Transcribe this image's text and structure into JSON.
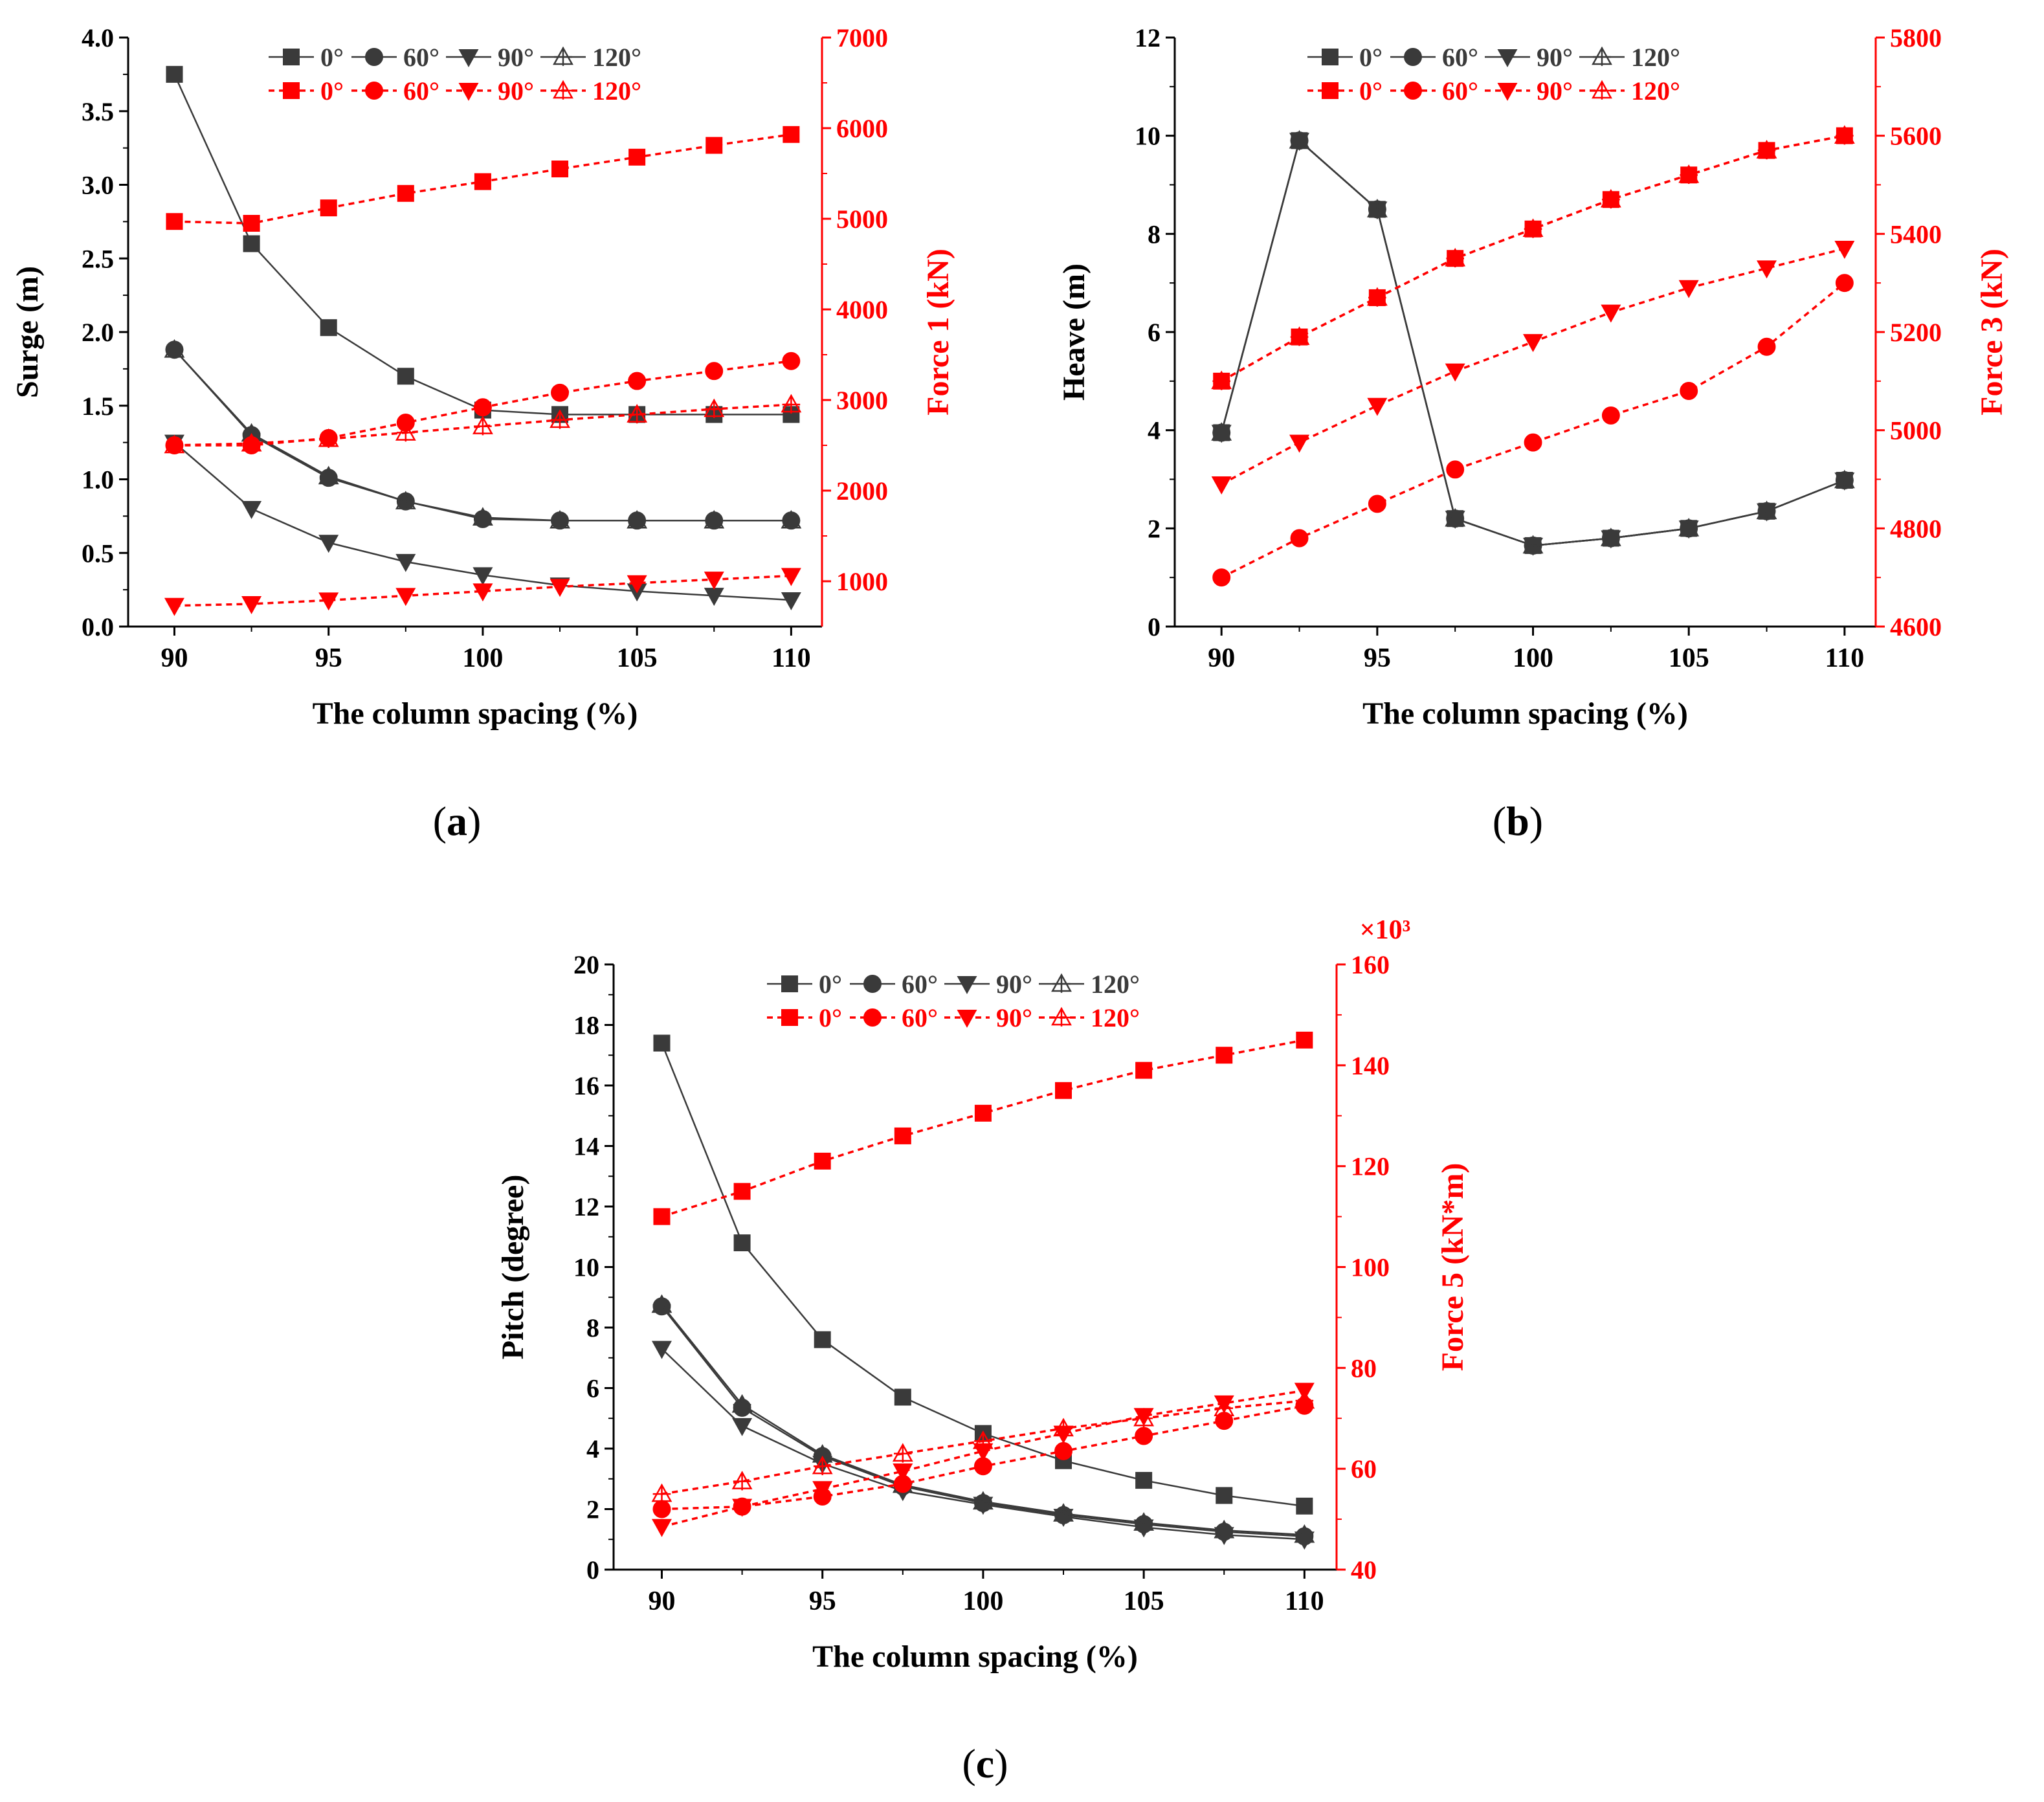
{
  "figure": {
    "x_values": [
      90,
      92.5,
      95,
      97.5,
      100,
      102.5,
      105,
      107.5,
      110
    ],
    "legend_labels": [
      "0°",
      "60°",
      "90°",
      "120°"
    ]
  },
  "chart_data": [
    {
      "type": "line",
      "panel_label": "(a)",
      "xlabel": "The column spacing (%)",
      "ylabel": "Surge (m)",
      "y2label": "Force 1 (kN)",
      "y2_multiplier": "",
      "xlim": [
        88.5,
        111
      ],
      "xticks": [
        90,
        95,
        100,
        105,
        110
      ],
      "ylim": [
        0,
        4
      ],
      "yticks": [
        0.0,
        0.5,
        1.0,
        1.5,
        2.0,
        2.5,
        3.0,
        3.5,
        4.0
      ],
      "ytick_decimals": 1,
      "y2lim": [
        500,
        7000
      ],
      "y2ticks": [
        1000,
        2000,
        3000,
        4000,
        5000,
        6000,
        7000
      ],
      "series": [
        {
          "name": "0°",
          "axis": "left",
          "marker": "square",
          "values": [
            3.75,
            2.6,
            2.03,
            1.7,
            1.47,
            1.44,
            1.44,
            1.44,
            1.44
          ]
        },
        {
          "name": "60°",
          "axis": "left",
          "marker": "circle",
          "values": [
            1.88,
            1.3,
            1.01,
            0.85,
            0.73,
            0.72,
            0.72,
            0.72,
            0.72
          ]
        },
        {
          "name": "90°",
          "axis": "left",
          "marker": "triangle-down",
          "values": [
            1.25,
            0.8,
            0.57,
            0.44,
            0.35,
            0.28,
            0.24,
            0.21,
            0.18
          ]
        },
        {
          "name": "120°",
          "axis": "left",
          "marker": "triangle-cross",
          "values": [
            1.88,
            1.31,
            1.02,
            0.85,
            0.74,
            0.72,
            0.72,
            0.72,
            0.72
          ]
        },
        {
          "name": "0°",
          "axis": "right",
          "marker": "square",
          "values": [
            4970,
            4950,
            5120,
            5280,
            5410,
            5550,
            5680,
            5810,
            5930
          ]
        },
        {
          "name": "60°",
          "axis": "right",
          "marker": "circle",
          "values": [
            2500,
            2500,
            2580,
            2750,
            2920,
            3080,
            3210,
            3320,
            3430
          ]
        },
        {
          "name": "90°",
          "axis": "right",
          "marker": "triangle-down",
          "values": [
            730,
            750,
            790,
            840,
            890,
            940,
            980,
            1020,
            1060
          ]
        },
        {
          "name": "120°",
          "axis": "right",
          "marker": "triangle-cross",
          "values": [
            2500,
            2520,
            2570,
            2640,
            2710,
            2780,
            2840,
            2900,
            2950
          ]
        }
      ]
    },
    {
      "type": "line",
      "panel_label": "(b)",
      "xlabel": "The column spacing (%)",
      "ylabel": "Heave (m)",
      "y2label": "Force 3 (kN)",
      "y2_multiplier": "",
      "xlim": [
        88.5,
        111
      ],
      "xticks": [
        90,
        95,
        100,
        105,
        110
      ],
      "ylim": [
        0,
        12
      ],
      "yticks": [
        0,
        2,
        4,
        6,
        8,
        10,
        12
      ],
      "ytick_decimals": 0,
      "y2lim": [
        4600,
        5800
      ],
      "y2ticks": [
        4600,
        4800,
        5000,
        5200,
        5400,
        5600,
        5800
      ],
      "series": [
        {
          "name": "0°",
          "axis": "left",
          "marker": "square",
          "values": [
            3.95,
            9.9,
            8.5,
            2.2,
            1.65,
            1.8,
            2.0,
            2.35,
            2.98
          ]
        },
        {
          "name": "60°",
          "axis": "left",
          "marker": "circle",
          "values": [
            3.95,
            9.9,
            8.5,
            2.2,
            1.65,
            1.8,
            2.0,
            2.35,
            2.98
          ]
        },
        {
          "name": "90°",
          "axis": "left",
          "marker": "triangle-down",
          "values": [
            3.95,
            9.9,
            8.5,
            2.2,
            1.65,
            1.8,
            2.0,
            2.35,
            2.98
          ]
        },
        {
          "name": "120°",
          "axis": "left",
          "marker": "triangle-cross",
          "values": [
            3.95,
            9.9,
            8.5,
            2.2,
            1.65,
            1.8,
            2.0,
            2.35,
            2.98
          ]
        },
        {
          "name": "0°",
          "axis": "right",
          "marker": "square",
          "values": [
            5100,
            5190,
            5270,
            5350,
            5410,
            5470,
            5520,
            5570,
            5600
          ]
        },
        {
          "name": "60°",
          "axis": "right",
          "marker": "circle",
          "values": [
            4700,
            4780,
            4850,
            4920,
            4975,
            5030,
            5080,
            5170,
            5300
          ]
        },
        {
          "name": "90°",
          "axis": "right",
          "marker": "triangle-down",
          "values": [
            4890,
            4975,
            5050,
            5120,
            5180,
            5240,
            5290,
            5330,
            5370
          ]
        },
        {
          "name": "120°",
          "axis": "right",
          "marker": "triangle-cross",
          "values": [
            5100,
            5190,
            5270,
            5350,
            5410,
            5470,
            5520,
            5570,
            5600
          ]
        }
      ]
    },
    {
      "type": "line",
      "panel_label": "(c)",
      "xlabel": "The column spacing (%)",
      "ylabel": "Pitch (degree)",
      "y2label": "Force 5 (kN*m)",
      "y2_multiplier": "×10³",
      "xlim": [
        88.5,
        111
      ],
      "xticks": [
        90,
        95,
        100,
        105,
        110
      ],
      "ylim": [
        0,
        20
      ],
      "yticks": [
        0,
        2,
        4,
        6,
        8,
        10,
        12,
        14,
        16,
        18,
        20
      ],
      "ytick_decimals": 0,
      "y2lim": [
        40,
        160
      ],
      "y2ticks": [
        40,
        60,
        80,
        100,
        120,
        140,
        160
      ],
      "series": [
        {
          "name": "0°",
          "axis": "left",
          "marker": "square",
          "values": [
            17.4,
            10.8,
            7.6,
            5.7,
            4.5,
            3.6,
            2.95,
            2.45,
            2.1
          ]
        },
        {
          "name": "60°",
          "axis": "left",
          "marker": "circle",
          "values": [
            8.7,
            5.35,
            3.75,
            2.75,
            2.2,
            1.8,
            1.5,
            1.25,
            1.1
          ]
        },
        {
          "name": "90°",
          "axis": "left",
          "marker": "triangle-down",
          "values": [
            7.3,
            4.75,
            3.5,
            2.6,
            2.15,
            1.75,
            1.4,
            1.15,
            1.0
          ]
        },
        {
          "name": "120°",
          "axis": "left",
          "marker": "triangle-cross",
          "values": [
            8.75,
            5.45,
            3.8,
            2.8,
            2.25,
            1.85,
            1.55,
            1.3,
            1.15
          ]
        },
        {
          "name": "0°",
          "axis": "right",
          "marker": "square",
          "values": [
            110,
            115,
            121,
            126,
            130.5,
            135,
            139,
            142,
            145
          ]
        },
        {
          "name": "60°",
          "axis": "right",
          "marker": "circle",
          "values": [
            52,
            52.5,
            54.5,
            57,
            60.5,
            63.5,
            66.5,
            69.5,
            72.5
          ]
        },
        {
          "name": "90°",
          "axis": "right",
          "marker": "triangle-down",
          "values": [
            48.5,
            52.5,
            56,
            59.5,
            63.5,
            67,
            70.5,
            73,
            75.5
          ]
        },
        {
          "name": "120°",
          "axis": "right",
          "marker": "triangle-cross",
          "values": [
            55,
            57.5,
            60.5,
            63,
            65.5,
            68,
            70,
            72,
            73.5
          ]
        }
      ]
    }
  ]
}
